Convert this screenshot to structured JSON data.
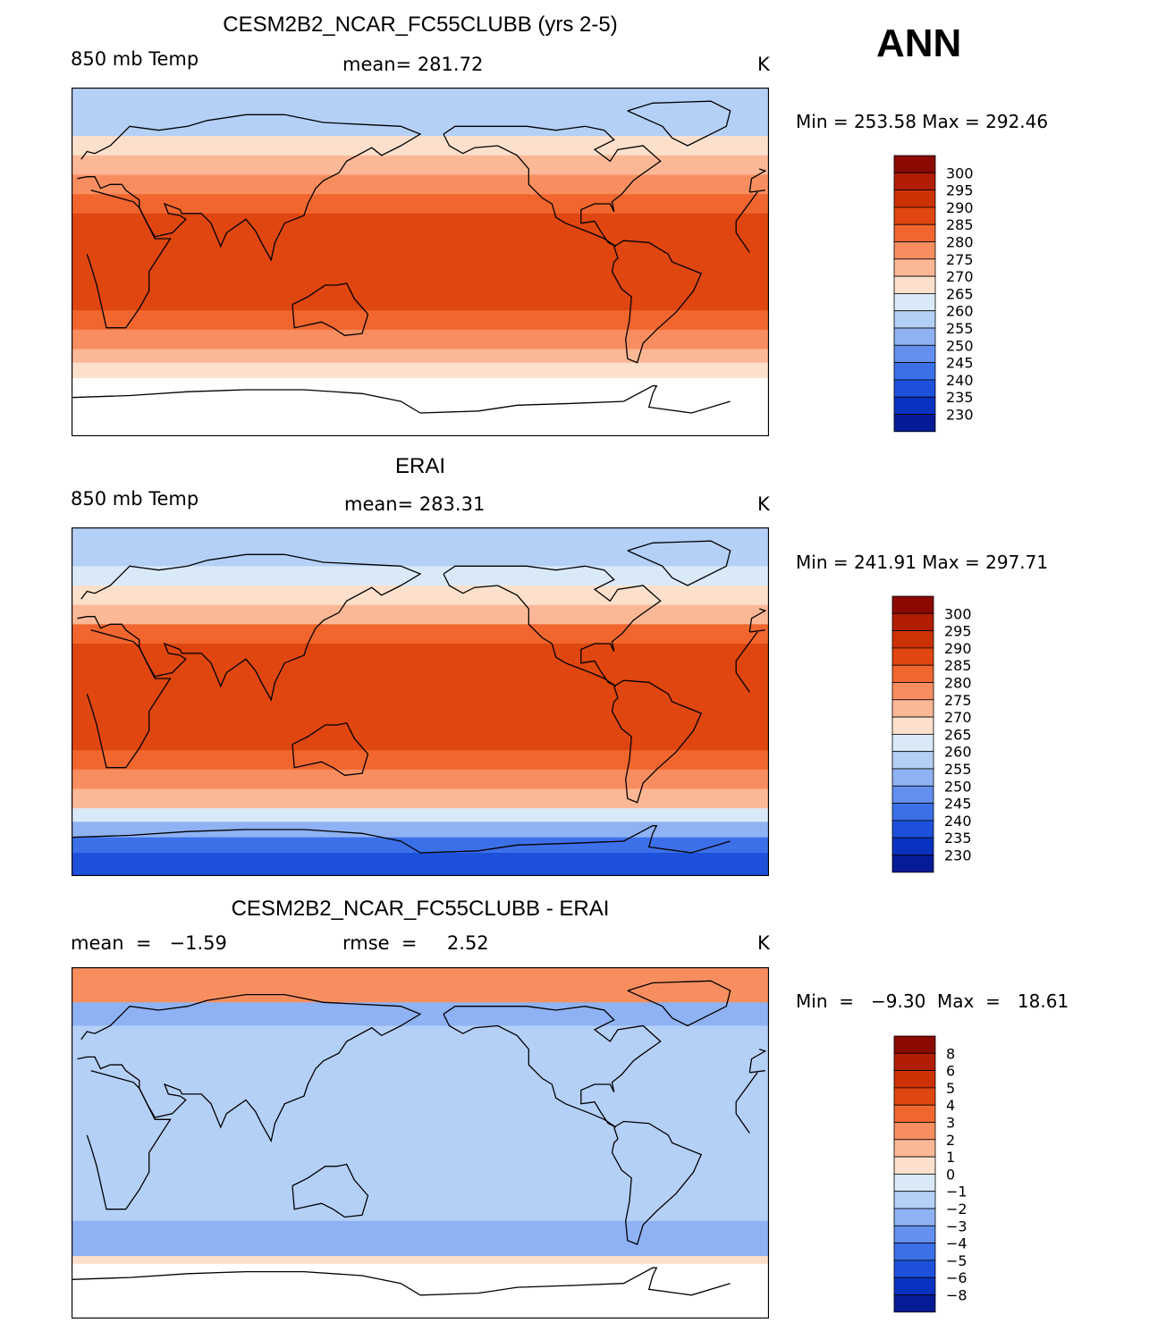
{
  "season": "ANN",
  "panels": [
    {
      "id": "model",
      "title": "CESM2B2_NCAR_FC55CLUBB (yrs 2-5)",
      "left_label": "850 mb Temp",
      "center_label": "mean= 281.72",
      "units": "K",
      "minmax": "Min  =  253.58  Max  =  292.46"
    },
    {
      "id": "obs",
      "title": "ERAI",
      "left_label": "850 mb Temp",
      "center_label": "mean= 283.31",
      "units": "K",
      "minmax": "Min  =  241.91  Max  =  297.71"
    },
    {
      "id": "diff",
      "title": "CESM2B2_NCAR_FC55CLUBB - ERAI",
      "left_label": "mean  =   −1.59",
      "center_label": "rmse  =     2.52",
      "units": "K",
      "minmax": "Min  =   −9.30  Max  =   18.61"
    }
  ],
  "chart_data": [
    {
      "type": "heatmap",
      "title": "CESM2B2_NCAR_FC55CLUBB (yrs 2-5)",
      "variable": "850 mb Temp",
      "units": "K",
      "mean": 281.72,
      "min": 253.58,
      "max": 292.46,
      "colorbar": {
        "labels": [
          "300",
          "295",
          "290",
          "285",
          "280",
          "275",
          "270",
          "265",
          "260",
          "255",
          "250",
          "245",
          "240",
          "235",
          "230"
        ],
        "colors": [
          "#8a0a00",
          "#b21e04",
          "#cc3205",
          "#e0460f",
          "#f0662e",
          "#f88e60",
          "#fcb896",
          "#fde0cc",
          "#dae9f8",
          "#b5d0f7",
          "#8eb2f3",
          "#6390ef",
          "#3c70e9",
          "#1d50db",
          "#0a32c0",
          "#051c96"
        ]
      },
      "bands": [
        {
          "lat_min": 65,
          "lat_max": 90,
          "value": 258
        },
        {
          "lat_min": 55,
          "lat_max": 65,
          "value": 266
        },
        {
          "lat_min": 45,
          "lat_max": 55,
          "value": 271
        },
        {
          "lat_min": 35,
          "lat_max": 45,
          "value": 278
        },
        {
          "lat_min": 25,
          "lat_max": 35,
          "value": 284
        },
        {
          "lat_min": -25,
          "lat_max": 25,
          "value": 288
        },
        {
          "lat_min": -35,
          "lat_max": -25,
          "value": 284
        },
        {
          "lat_min": -45,
          "lat_max": -35,
          "value": 278
        },
        {
          "lat_min": -52,
          "lat_max": -45,
          "value": 272
        },
        {
          "lat_min": -60,
          "lat_max": -52,
          "value": 268
        },
        {
          "lat_min": -90,
          "lat_max": -60,
          "value": null
        }
      ]
    },
    {
      "type": "heatmap",
      "title": "ERAI",
      "variable": "850 mb Temp",
      "units": "K",
      "mean": 283.31,
      "min": 241.91,
      "max": 297.71,
      "colorbar": {
        "labels": [
          "300",
          "295",
          "290",
          "285",
          "280",
          "275",
          "270",
          "265",
          "260",
          "255",
          "250",
          "245",
          "240",
          "235",
          "230"
        ],
        "colors": [
          "#8a0a00",
          "#b21e04",
          "#cc3205",
          "#e0460f",
          "#f0662e",
          "#f88e60",
          "#fcb896",
          "#fde0cc",
          "#dae9f8",
          "#b5d0f7",
          "#8eb2f3",
          "#6390ef",
          "#3c70e9",
          "#1d50db",
          "#0a32c0",
          "#051c96"
        ]
      },
      "bands": [
        {
          "lat_min": 70,
          "lat_max": 90,
          "value": 258
        },
        {
          "lat_min": 60,
          "lat_max": 70,
          "value": 263
        },
        {
          "lat_min": 50,
          "lat_max": 60,
          "value": 268
        },
        {
          "lat_min": 40,
          "lat_max": 50,
          "value": 274
        },
        {
          "lat_min": 30,
          "lat_max": 40,
          "value": 282
        },
        {
          "lat_min": -25,
          "lat_max": 30,
          "value": 289
        },
        {
          "lat_min": -35,
          "lat_max": -25,
          "value": 284
        },
        {
          "lat_min": -45,
          "lat_max": -35,
          "value": 278
        },
        {
          "lat_min": -55,
          "lat_max": -45,
          "value": 271
        },
        {
          "lat_min": -62,
          "lat_max": -55,
          "value": 262
        },
        {
          "lat_min": -70,
          "lat_max": -62,
          "value": 252
        },
        {
          "lat_min": -78,
          "lat_max": -70,
          "value": 243
        },
        {
          "lat_min": -90,
          "lat_max": -78,
          "value": 238
        }
      ]
    },
    {
      "type": "heatmap",
      "title": "CESM2B2_NCAR_FC55CLUBB - ERAI",
      "units": "K",
      "mean": -1.59,
      "rmse": 2.52,
      "min": -9.3,
      "max": 18.61,
      "colorbar": {
        "labels": [
          "8",
          "6",
          "5",
          "4",
          "3",
          "2",
          "1",
          "0",
          "−1",
          "−2",
          "−3",
          "−4",
          "−5",
          "−6",
          "−8"
        ],
        "colors": [
          "#8a0a00",
          "#b21e04",
          "#cc3205",
          "#e0460f",
          "#f0662e",
          "#f88e60",
          "#fcb896",
          "#fde0cc",
          "#dae9f8",
          "#b5d0f7",
          "#8eb2f3",
          "#6390ef",
          "#3c70e9",
          "#1d50db",
          "#0a32c0",
          "#051c96"
        ]
      },
      "bands": [
        {
          "lat_min": 72,
          "lat_max": 90,
          "value": 2.5
        },
        {
          "lat_min": 60,
          "lat_max": 72,
          "value": -2.5
        },
        {
          "lat_min": 20,
          "lat_max": 60,
          "value": -2
        },
        {
          "lat_min": -40,
          "lat_max": 20,
          "value": -1.5
        },
        {
          "lat_min": -58,
          "lat_max": -40,
          "value": -2.5
        },
        {
          "lat_min": -62,
          "lat_max": -58,
          "value": 0.5
        },
        {
          "lat_min": -90,
          "lat_max": -62,
          "value": null
        }
      ]
    }
  ]
}
